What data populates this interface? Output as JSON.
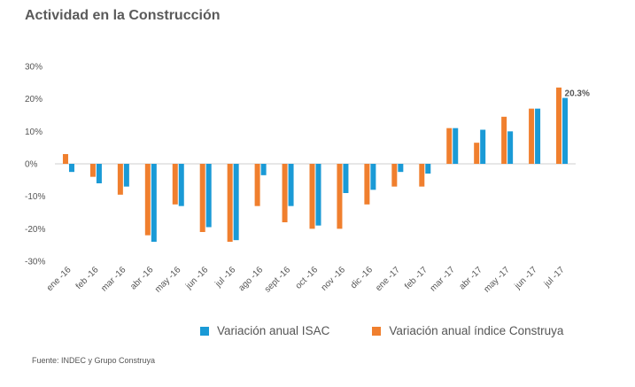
{
  "title": "Actividad en la Construcción",
  "source": "Fuente: INDEC y Grupo Construya",
  "colors": {
    "isac": "#1a9ad6",
    "construya": "#f07f2e",
    "axis_text": "#555555",
    "zero_line": "#cfcfcf"
  },
  "chart_data": {
    "type": "bar",
    "categories": [
      "ene -16",
      "feb -16",
      "mar -16",
      "abr -16",
      "may -16",
      "jun -16",
      "jul -16",
      "ago -16",
      "sept -16",
      "oct -16",
      "nov -16",
      "dic -16",
      "ene -17",
      "feb -17",
      "mar -17",
      "abr -17",
      "may -17",
      "jun -17",
      "jul -17"
    ],
    "series": [
      {
        "name": "Variación anual índice Construya",
        "color": "#f07f2e",
        "values": [
          3.0,
          -4.0,
          -9.5,
          -22.0,
          -12.5,
          -21.0,
          -24.0,
          -13.0,
          -18.0,
          -20.0,
          -20.0,
          -12.5,
          -7.0,
          -7.0,
          11.0,
          6.5,
          14.5,
          17.0,
          23.5
        ]
      },
      {
        "name": "Variación anual ISAC",
        "color": "#1a9ad6",
        "values": [
          -2.5,
          -6.0,
          -7.0,
          -24.0,
          -13.0,
          -19.5,
          -23.5,
          -3.5,
          -13.0,
          -19.0,
          -9.0,
          -8.0,
          -2.5,
          -3.0,
          11.0,
          10.5,
          10.0,
          17.0,
          20.3
        ]
      }
    ],
    "ylim": [
      -30,
      30
    ],
    "yticks": [
      30,
      20,
      10,
      0,
      -10,
      -20,
      -30
    ],
    "ytick_labels": [
      "30%",
      "20%",
      "10%",
      "0%",
      "-10%",
      "-20%",
      "-30%"
    ],
    "annotation": {
      "label": "20.3%",
      "category": "jul -17",
      "series": "Variación anual ISAC"
    },
    "legend_position": "bottom",
    "grid": false
  },
  "legend": [
    {
      "label": "Variación anual ISAC",
      "color": "#1a9ad6"
    },
    {
      "label": "Variación anual índice Construya",
      "color": "#f07f2e"
    }
  ]
}
